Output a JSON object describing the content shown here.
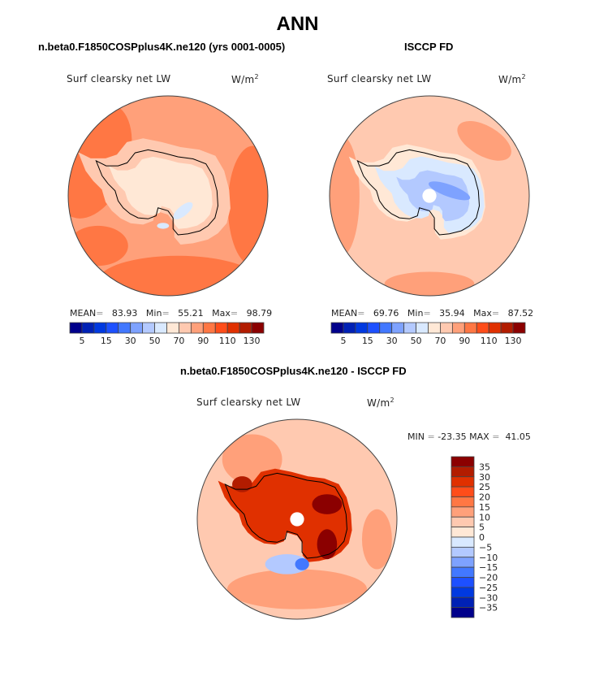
{
  "figure": {
    "title": "ANN",
    "colors": {
      "scale": [
        "#00008b",
        "#0021b5",
        "#0039e0",
        "#1d50ff",
        "#4278ff",
        "#7ea2ff",
        "#b3c9ff",
        "#d9e9ff",
        "#ffe8d6",
        "#ffc9b0",
        "#ffa07a",
        "#ff7744",
        "#ff4d1a",
        "#e03000",
        "#b21c00",
        "#8b0000"
      ],
      "outline": "#000000"
    }
  },
  "chart_data": [
    {
      "type": "heatmap",
      "projection": "south-polar-stereographic",
      "title": "n.beta0.F1850COSPplus4K.ne120 (yrs 0001-0005)",
      "variable": "Surf clearsky net LW",
      "units": "W/m",
      "units_sup": "2",
      "stats": {
        "mean_label": "MEAN",
        "mean": "83.93",
        "min_label": "Min",
        "min": "55.21",
        "max_label": "Max",
        "max": "98.79"
      },
      "colorbar": {
        "orientation": "horizontal",
        "levels": [
          5,
          10,
          15,
          20,
          30,
          40,
          50,
          60,
          70,
          80,
          90,
          100,
          110,
          120,
          130
        ],
        "tick_labels": [
          "5",
          "15",
          "30",
          "50",
          "70",
          "90",
          "110",
          "130"
        ]
      },
      "regions": [
        {
          "name": "open-ocean-background",
          "level_index": 10
        },
        {
          "name": "ocean-high-band",
          "level_index": 11
        },
        {
          "name": "coastal-ring",
          "level_index": 9
        },
        {
          "name": "east-antarctic-plateau",
          "level_index": 8
        },
        {
          "name": "plateau-cold-spots",
          "level_index": 7
        }
      ]
    },
    {
      "type": "heatmap",
      "projection": "south-polar-stereographic",
      "title": "ISCCP FD",
      "variable": "Surf clearsky net LW",
      "units": "W/m",
      "units_sup": "2",
      "stats": {
        "mean_label": "MEAN",
        "mean": "69.76",
        "min_label": "Min",
        "min": "35.94",
        "max_label": "Max",
        "max": "87.52"
      },
      "colorbar": {
        "orientation": "horizontal",
        "levels": [
          5,
          10,
          15,
          20,
          30,
          40,
          50,
          60,
          70,
          80,
          90,
          100,
          110,
          120,
          130
        ],
        "tick_labels": [
          "5",
          "15",
          "30",
          "50",
          "70",
          "90",
          "110",
          "130"
        ]
      },
      "regions": [
        {
          "name": "open-ocean-background",
          "level_index": 9
        },
        {
          "name": "ocean-warm-patches",
          "level_index": 10
        },
        {
          "name": "west-antarctica-coast",
          "level_index": 8
        },
        {
          "name": "east-antarctic-plateau",
          "level_index": 7
        },
        {
          "name": "plateau-interior",
          "level_index": 6
        },
        {
          "name": "plateau-core",
          "level_index": 5
        }
      ]
    },
    {
      "type": "heatmap",
      "projection": "south-polar-stereographic",
      "title": "n.beta0.F1850COSPplus4K.ne120 - ISCCP FD",
      "variable": "Surf clearsky net LW",
      "units": "W/m",
      "units_sup": "2",
      "stats_text": {
        "min_label": "MIN",
        "min": "-23.35",
        "max_label": "MAX",
        "max": "41.05"
      },
      "colorbar": {
        "orientation": "vertical",
        "levels": [
          -35,
          -30,
          -25,
          -20,
          -15,
          -10,
          -5,
          0,
          5,
          10,
          15,
          20,
          25,
          30,
          35
        ],
        "tick_labels": [
          "35",
          "30",
          "25",
          "20",
          "15",
          "10",
          "5",
          "0",
          "−5",
          "−10",
          "−15",
          "−20",
          "−25",
          "−30",
          "−35"
        ]
      },
      "regions": [
        {
          "name": "ocean-background",
          "level_index": 9
        },
        {
          "name": "ocean-moderate",
          "level_index": 10
        },
        {
          "name": "ross-sea-negative",
          "level_index": 6
        },
        {
          "name": "ross-sea-min",
          "level_index": 4
        },
        {
          "name": "east-antarctic-high",
          "level_index": 13
        },
        {
          "name": "east-antarctic-max",
          "level_index": 15
        },
        {
          "name": "antarctic-peninsula-high",
          "level_index": 14
        }
      ]
    }
  ]
}
